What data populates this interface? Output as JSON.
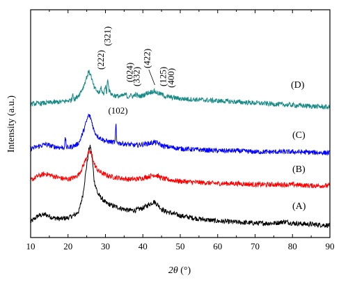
{
  "chart_data": {
    "type": "line",
    "xlabel_parts": {
      "italic": "2θ",
      "rest": " (°)"
    },
    "ylabel": "Intensity (a.u.)",
    "xlim": [
      10,
      90
    ],
    "x_ticks": [
      10,
      20,
      30,
      40,
      50,
      60,
      70,
      80,
      90
    ],
    "y_ticks_shown": false,
    "grid": false,
    "series": [
      {
        "name": "(A)",
        "color": "#000000",
        "points": [
          [
            10,
            2
          ],
          [
            12,
            8
          ],
          [
            14,
            9
          ],
          [
            16,
            6
          ],
          [
            18,
            5
          ],
          [
            20,
            6
          ],
          [
            22,
            9
          ],
          [
            23,
            13
          ],
          [
            24,
            28
          ],
          [
            25,
            55
          ],
          [
            25.6,
            70
          ],
          [
            26,
            72
          ],
          [
            26.5,
            60
          ],
          [
            27,
            40
          ],
          [
            28,
            28
          ],
          [
            30,
            20
          ],
          [
            32,
            17
          ],
          [
            34,
            15
          ],
          [
            36,
            13
          ],
          [
            38,
            13
          ],
          [
            40,
            15
          ],
          [
            42,
            19
          ],
          [
            43,
            21
          ],
          [
            44,
            18
          ],
          [
            45,
            14
          ],
          [
            46,
            12
          ],
          [
            48,
            10
          ],
          [
            50,
            8
          ],
          [
            55,
            5
          ],
          [
            60,
            3
          ],
          [
            65,
            2
          ],
          [
            70,
            1
          ],
          [
            75,
            1
          ],
          [
            78,
            2.5
          ],
          [
            80,
            1
          ],
          [
            85,
            0
          ],
          [
            90,
            -1
          ]
        ]
      },
      {
        "name": "(B)",
        "color": "#ff0000",
        "points": [
          [
            10,
            4
          ],
          [
            12,
            8
          ],
          [
            14,
            10
          ],
          [
            16,
            8
          ],
          [
            18,
            6
          ],
          [
            20,
            5
          ],
          [
            22,
            7
          ],
          [
            23,
            10
          ],
          [
            24,
            17
          ],
          [
            25,
            26
          ],
          [
            25.6,
            30
          ],
          [
            26,
            30
          ],
          [
            26.5,
            26
          ],
          [
            27,
            19
          ],
          [
            28,
            13
          ],
          [
            30,
            9
          ],
          [
            32,
            7
          ],
          [
            34,
            6
          ],
          [
            36,
            5
          ],
          [
            38,
            5
          ],
          [
            40,
            6
          ],
          [
            42,
            8
          ],
          [
            43,
            9
          ],
          [
            44,
            8
          ],
          [
            45,
            6
          ],
          [
            46,
            5
          ],
          [
            48,
            4
          ],
          [
            50,
            3
          ],
          [
            55,
            2
          ],
          [
            60,
            1
          ],
          [
            65,
            1
          ],
          [
            70,
            0
          ],
          [
            75,
            0
          ],
          [
            80,
            0
          ],
          [
            85,
            -1
          ],
          [
            90,
            -1
          ]
        ]
      },
      {
        "name": "(C)",
        "color": "#0000ff",
        "points": [
          [
            10,
            3
          ],
          [
            12,
            5
          ],
          [
            14,
            7
          ],
          [
            16,
            5
          ],
          [
            18,
            4
          ],
          [
            19,
            4
          ],
          [
            19.3,
            13
          ],
          [
            19.6,
            4
          ],
          [
            20,
            4
          ],
          [
            22,
            6
          ],
          [
            23,
            9
          ],
          [
            24,
            18
          ],
          [
            25,
            29
          ],
          [
            25.5,
            34
          ],
          [
            26,
            32
          ],
          [
            26.5,
            26
          ],
          [
            27,
            19
          ],
          [
            28,
            14
          ],
          [
            30,
            10
          ],
          [
            32,
            9
          ],
          [
            32.6,
            9
          ],
          [
            32.8,
            28
          ],
          [
            33,
            9
          ],
          [
            34,
            8
          ],
          [
            36,
            7
          ],
          [
            38,
            6
          ],
          [
            40,
            7
          ],
          [
            42,
            8
          ],
          [
            43,
            9
          ],
          [
            44,
            8
          ],
          [
            45,
            6
          ],
          [
            46,
            5
          ],
          [
            48,
            4
          ],
          [
            50,
            3
          ],
          [
            55,
            2
          ],
          [
            60,
            1
          ],
          [
            65,
            1
          ],
          [
            70,
            0
          ],
          [
            80,
            0
          ],
          [
            90,
            -1
          ]
        ]
      },
      {
        "name": "(D)",
        "color": "#178a85",
        "points": [
          [
            10,
            3
          ],
          [
            14,
            4
          ],
          [
            18,
            5
          ],
          [
            20,
            6
          ],
          [
            21,
            7
          ],
          [
            21.3,
            14
          ],
          [
            21.6,
            7
          ],
          [
            22,
            8
          ],
          [
            23,
            12
          ],
          [
            24,
            18
          ],
          [
            25,
            28
          ],
          [
            25.5,
            33
          ],
          [
            26,
            31
          ],
          [
            26.5,
            24
          ],
          [
            27,
            18
          ],
          [
            28,
            14
          ],
          [
            28.5,
            13
          ],
          [
            28.8,
            20
          ],
          [
            29.1,
            13
          ],
          [
            29.6,
            13
          ],
          [
            30,
            21
          ],
          [
            30.3,
            12
          ],
          [
            30.6,
            28
          ],
          [
            31,
            15
          ],
          [
            32,
            11
          ],
          [
            34,
            10
          ],
          [
            35.5,
            12
          ],
          [
            36,
            9
          ],
          [
            36.5,
            11
          ],
          [
            37.5,
            10
          ],
          [
            38,
            12
          ],
          [
            39,
            10
          ],
          [
            40,
            11
          ],
          [
            41,
            13
          ],
          [
            42,
            14
          ],
          [
            43,
            15
          ],
          [
            44,
            13
          ],
          [
            45,
            12
          ],
          [
            46,
            10
          ],
          [
            48,
            9
          ],
          [
            50,
            8
          ],
          [
            55,
            7
          ],
          [
            60,
            6
          ],
          [
            65,
            5
          ],
          [
            70,
            4
          ],
          [
            75,
            3
          ],
          [
            80,
            2
          ],
          [
            85,
            1
          ],
          [
            90,
            0
          ]
        ]
      }
    ],
    "annotations": [
      {
        "text": "(222)",
        "x": 28.8
      },
      {
        "text": "(321)",
        "x": 30.6
      },
      {
        "text": "(024)",
        "x": 36.5
      },
      {
        "text": "(332)",
        "x": 38.4
      },
      {
        "text": "(422)",
        "x": 41.2
      },
      {
        "text": "(125)",
        "x": 45.4
      },
      {
        "text": "(400)",
        "x": 47.6
      },
      {
        "text": "(102)",
        "x": 32.8
      }
    ]
  }
}
